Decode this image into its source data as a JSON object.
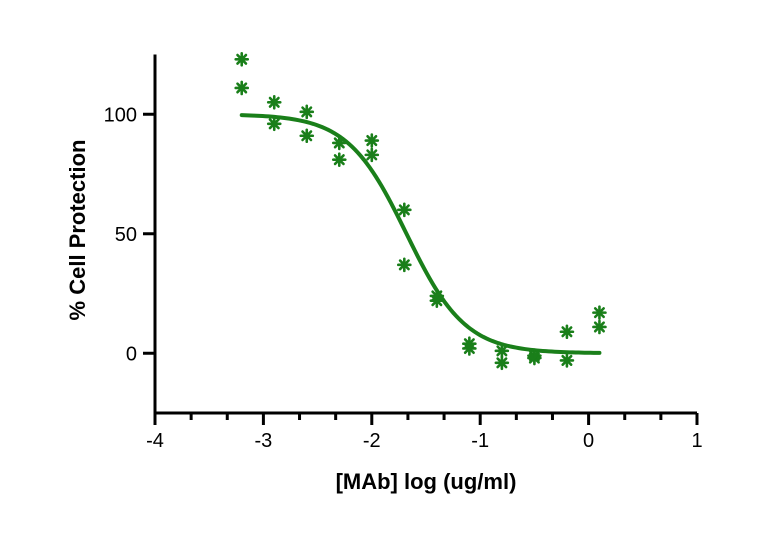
{
  "chart_data": {
    "type": "scatter",
    "xlabel": "[MAb] log (ug/ml)",
    "ylabel": "% Cell Protection",
    "xlim": [
      -4,
      1
    ],
    "ylim": [
      -25,
      125
    ],
    "x_ticks": [
      -4,
      -3,
      -2,
      -1,
      0,
      1
    ],
    "x_tick_labels": [
      "-4",
      "-3",
      "-2",
      "-1",
      "0",
      "1"
    ],
    "x_minor_step": 0.333,
    "y_ticks": [
      0,
      50,
      100
    ],
    "y_tick_labels": [
      "0",
      "50",
      "100"
    ],
    "grid": false,
    "legend": "none",
    "color": "#1a7f1a",
    "marker": "asterisk",
    "points": [
      {
        "x": -3.2,
        "y": 123
      },
      {
        "x": -3.2,
        "y": 111
      },
      {
        "x": -2.9,
        "y": 105
      },
      {
        "x": -2.9,
        "y": 96
      },
      {
        "x": -2.6,
        "y": 101
      },
      {
        "x": -2.6,
        "y": 91
      },
      {
        "x": -2.3,
        "y": 88
      },
      {
        "x": -2.3,
        "y": 81
      },
      {
        "x": -2.0,
        "y": 89
      },
      {
        "x": -2.0,
        "y": 83
      },
      {
        "x": -1.7,
        "y": 60
      },
      {
        "x": -1.7,
        "y": 37
      },
      {
        "x": -1.4,
        "y": 24
      },
      {
        "x": -1.4,
        "y": 22
      },
      {
        "x": -1.1,
        "y": 4
      },
      {
        "x": -1.1,
        "y": 2
      },
      {
        "x": -0.8,
        "y": 1
      },
      {
        "x": -0.8,
        "y": -4
      },
      {
        "x": -0.5,
        "y": -1
      },
      {
        "x": -0.5,
        "y": -2
      },
      {
        "x": -0.2,
        "y": 9
      },
      {
        "x": -0.2,
        "y": -3
      },
      {
        "x": 0.1,
        "y": 17
      },
      {
        "x": 0.1,
        "y": 11
      }
    ],
    "fit": {
      "model": "four-parameter logistic",
      "top": 100,
      "bottom": 0,
      "log_ec50": -1.68,
      "hill_slope": -1.6,
      "x_range": [
        -3.2,
        0.1
      ]
    }
  }
}
